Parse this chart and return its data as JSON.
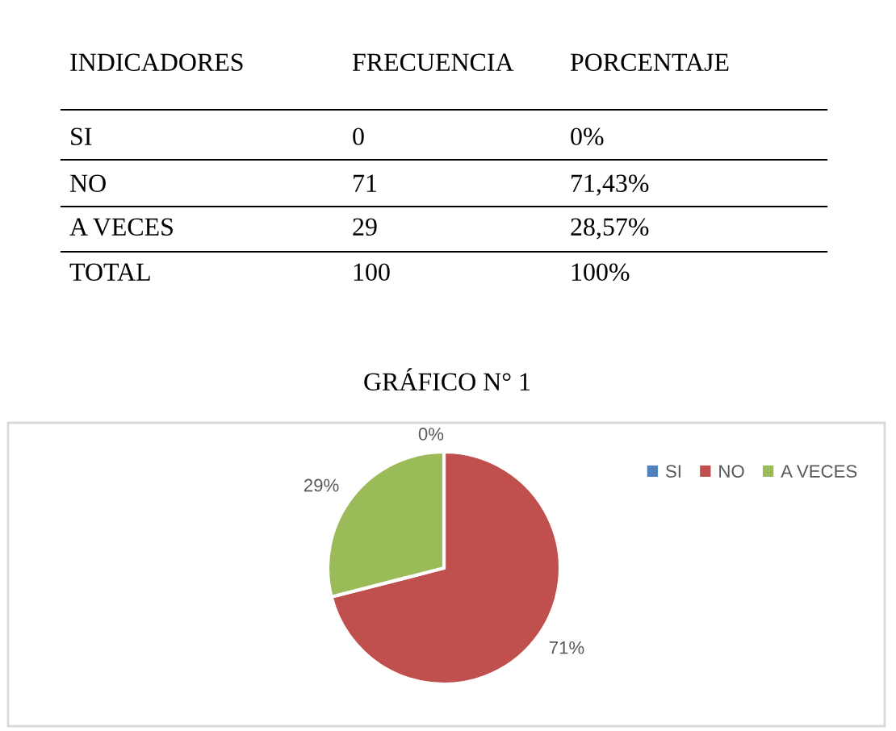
{
  "chart_data": {
    "type": "pie",
    "title": "GRÁFICO N° 1",
    "categories": [
      "SI",
      "NO",
      "A VECES"
    ],
    "values": [
      0,
      71,
      29
    ],
    "value_labels": [
      "0%",
      "71%",
      "29%"
    ],
    "colors": [
      "#4f81bd",
      "#c0504d",
      "#9bbb59"
    ],
    "legend": "right",
    "annotations": [
      "INDICADORES",
      "FRECUENCIA",
      "PORCENTAJE",
      "SI",
      "0",
      "0%",
      "NO",
      "71",
      "71,43%",
      "A VECES",
      "29",
      "28,57%",
      "TOTAL",
      "100",
      "100%"
    ]
  }
}
